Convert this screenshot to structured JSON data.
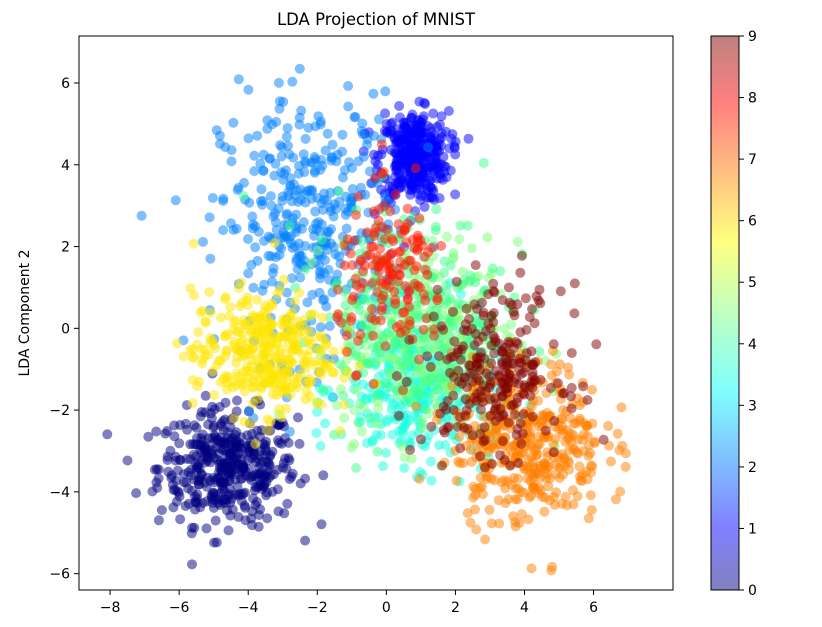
{
  "chart_data": {
    "type": "scatter",
    "title": "LDA Projection of MNIST",
    "xlabel": "",
    "ylabel": "LDA Component 2",
    "xlim": [
      -8.9,
      8.3
    ],
    "ylim": [
      -6.4,
      7.15
    ],
    "xticks": [
      -8,
      -6,
      -4,
      -2,
      0,
      2,
      4,
      6
    ],
    "yticks": [
      -6,
      -4,
      -2,
      0,
      2,
      4,
      6
    ],
    "tick_labels_x": [
      "−8",
      "−6",
      "−4",
      "−2",
      "0",
      "2",
      "4",
      "6"
    ],
    "tick_labels_y": [
      "−6",
      "−4",
      "−2",
      "0",
      "2",
      "4",
      "6"
    ],
    "grid": false,
    "marker_alpha": 0.5,
    "colormap": "jet",
    "colorbar": {
      "range": [
        0,
        9
      ],
      "ticks": [
        0,
        1,
        2,
        3,
        4,
        5,
        6,
        7,
        8,
        9
      ],
      "tick_labels": [
        "0",
        "1",
        "2",
        "3",
        "4",
        "5",
        "6",
        "7",
        "8",
        "9"
      ]
    },
    "series": [
      {
        "label": 0,
        "center": [
          -4.6,
          -3.4
        ],
        "spread": [
          1.0,
          0.7
        ],
        "count": 420,
        "color": "#00007f"
      },
      {
        "label": 1,
        "center": [
          0.8,
          4.2
        ],
        "spread": [
          0.5,
          0.55
        ],
        "count": 380,
        "color": "#0000ff"
      },
      {
        "label": 2,
        "center": [
          -2.2,
          2.5
        ],
        "spread": [
          1.3,
          1.6
        ],
        "count": 380,
        "color": "#0080ff"
      },
      {
        "label": 3,
        "center": [
          0.9,
          -1.5
        ],
        "spread": [
          1.1,
          0.9
        ],
        "count": 320,
        "color": "#17ffe0"
      },
      {
        "label": 4,
        "center": [
          1.2,
          -0.3
        ],
        "spread": [
          1.3,
          1.2
        ],
        "count": 300,
        "color": "#7dff7a"
      },
      {
        "label": 5,
        "center": [
          0.6,
          0.5
        ],
        "spread": [
          1.4,
          1.3
        ],
        "count": 220,
        "color": "#3aff8a"
      },
      {
        "label": 6,
        "center": [
          -3.6,
          -0.6
        ],
        "spread": [
          1.0,
          0.75
        ],
        "count": 340,
        "color": "#ffe600"
      },
      {
        "label": 7,
        "center": [
          4.1,
          -2.8
        ],
        "spread": [
          1.1,
          1.0
        ],
        "count": 400,
        "color": "#ff8000"
      },
      {
        "label": 8,
        "center": [
          0.2,
          1.2
        ],
        "spread": [
          0.8,
          1.0
        ],
        "count": 160,
        "color": "#ff1a00"
      },
      {
        "label": 9,
        "center": [
          3.1,
          -1.0
        ],
        "spread": [
          1.0,
          1.0
        ],
        "count": 260,
        "color": "#7f0000"
      }
    ]
  }
}
